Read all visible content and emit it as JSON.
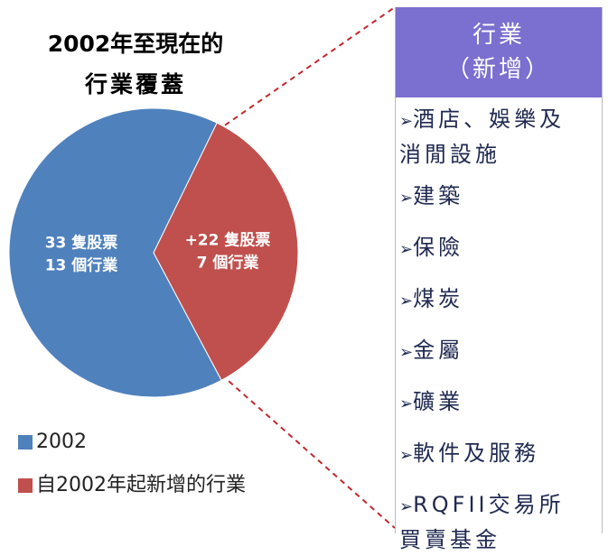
{
  "chart_data": {
    "type": "pie",
    "title_lines": [
      "2002年至現在的",
      "行業覆蓋"
    ],
    "categories": [
      "2002",
      "自2002年起新增的行業"
    ],
    "values": [
      13,
      7
    ],
    "value_labels": [
      "13 個行業",
      "7 個行業"
    ],
    "annotations": [
      "33 隻股票",
      "+22 隻股票"
    ],
    "colors": [
      "#4f81bd",
      "#c0504d"
    ]
  },
  "panel": {
    "header": [
      "行業",
      "（新增）"
    ],
    "items": [
      [
        "酒店、娛樂及",
        "消閒設施"
      ],
      [
        "建築"
      ],
      [
        "保險"
      ],
      [
        "煤炭"
      ],
      [
        "金屬"
      ],
      [
        "礦業"
      ],
      [
        "軟件及服務"
      ],
      [
        "RQFII交易所",
        "買賣基金"
      ]
    ]
  }
}
